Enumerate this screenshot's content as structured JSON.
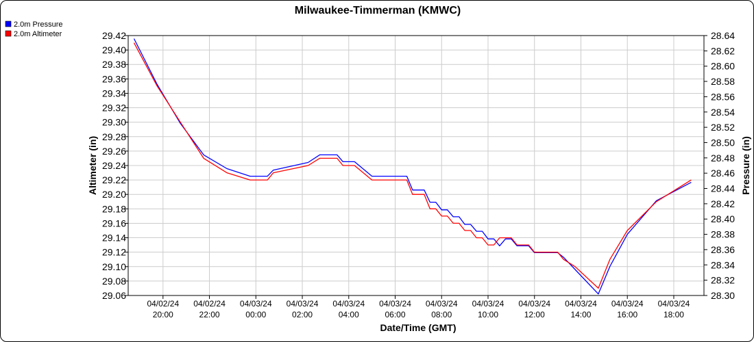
{
  "chart_data": {
    "type": "line",
    "title": "Milwaukee-Timmerman (KMWC)",
    "xlabel": "Date/Time (GMT)",
    "ylabel_left": "Altimeter (in)",
    "ylabel_right": "Pressure (in)",
    "ylim_left": [
      29.06,
      29.42
    ],
    "ylim_right": [
      28.3,
      28.64
    ],
    "left_ticks": [
      "29.42",
      "29.40",
      "29.38",
      "29.36",
      "29.34",
      "29.32",
      "29.30",
      "29.28",
      "29.26",
      "29.24",
      "29.22",
      "29.20",
      "29.18",
      "29.16",
      "29.14",
      "29.12",
      "29.10",
      "29.08",
      "29.06"
    ],
    "right_ticks": [
      "28.64",
      "28.62",
      "28.60",
      "28.58",
      "28.56",
      "28.54",
      "28.52",
      "28.50",
      "28.48",
      "28.46",
      "28.44",
      "28.42",
      "28.40",
      "28.38",
      "28.36",
      "28.34",
      "28.32",
      "28.30"
    ],
    "x_ticks": [
      {
        "date": "04/02/24",
        "time": "20:00",
        "hour": 20
      },
      {
        "date": "04/02/24",
        "time": "22:00",
        "hour": 22
      },
      {
        "date": "04/03/24",
        "time": "00:00",
        "hour": 24
      },
      {
        "date": "04/03/24",
        "time": "02:00",
        "hour": 26
      },
      {
        "date": "04/03/24",
        "time": "04:00",
        "hour": 28
      },
      {
        "date": "04/03/24",
        "time": "06:00",
        "hour": 30
      },
      {
        "date": "04/03/24",
        "time": "08:00",
        "hour": 32
      },
      {
        "date": "04/03/24",
        "time": "10:00",
        "hour": 34
      },
      {
        "date": "04/03/24",
        "time": "12:00",
        "hour": 36
      },
      {
        "date": "04/03/24",
        "time": "14:00",
        "hour": 38
      },
      {
        "date": "04/03/24",
        "time": "16:00",
        "hour": 40
      },
      {
        "date": "04/03/24",
        "time": "18:00",
        "hour": 42
      }
    ],
    "xlim_hours": [
      18.5,
      43.3
    ],
    "grid": true,
    "legend_position": "top-left",
    "series": [
      {
        "name": "2.0m Pressure",
        "axis": "right",
        "color": "#0000ff",
        "x": [
          18.75,
          19.75,
          20.75,
          21.75,
          22.75,
          23.75,
          24.5,
          24.75,
          26.25,
          26.75,
          27.25,
          27.5,
          27.75,
          28.25,
          29.0,
          29.25,
          29.5,
          30.0,
          30.5,
          30.75,
          31.0,
          31.25,
          31.5,
          31.75,
          32.0,
          32.25,
          32.5,
          32.75,
          33.0,
          33.25,
          33.5,
          33.75,
          34.0,
          34.25,
          34.5,
          34.75,
          35.0,
          35.25,
          35.5,
          35.75,
          36.0,
          36.25,
          36.5,
          36.75,
          37.0,
          37.25,
          37.75,
          38.75,
          39.25,
          40.0,
          41.25,
          42.75
        ],
        "y": [
          28.636,
          28.576,
          28.525,
          28.484,
          28.466,
          28.456,
          28.456,
          28.464,
          28.474,
          28.484,
          28.484,
          28.484,
          28.475,
          28.475,
          28.456,
          28.456,
          28.456,
          28.456,
          28.456,
          28.438,
          28.438,
          28.438,
          28.422,
          28.422,
          28.412,
          28.412,
          28.403,
          28.403,
          28.393,
          28.393,
          28.384,
          28.384,
          28.374,
          28.374,
          28.365,
          28.374,
          28.374,
          28.365,
          28.365,
          28.365,
          28.356,
          28.356,
          28.356,
          28.356,
          28.356,
          28.35,
          28.334,
          28.302,
          28.338,
          28.38,
          28.424,
          28.448
        ]
      },
      {
        "name": "2.0m Altimeter",
        "axis": "left",
        "color": "#ff0000",
        "x": [
          18.75,
          19.75,
          20.75,
          21.75,
          22.75,
          23.75,
          24.5,
          24.75,
          26.25,
          26.75,
          27.25,
          27.5,
          27.75,
          28.25,
          29.0,
          29.25,
          29.5,
          30.0,
          30.5,
          30.75,
          31.0,
          31.25,
          31.5,
          31.75,
          32.0,
          32.25,
          32.5,
          32.75,
          33.0,
          33.25,
          33.5,
          33.75,
          34.0,
          34.25,
          34.5,
          34.75,
          35.0,
          35.25,
          35.5,
          35.75,
          36.0,
          36.25,
          36.5,
          36.75,
          37.0,
          37.25,
          37.75,
          38.75,
          39.25,
          40.0,
          41.25,
          42.75
        ],
        "y": [
          29.41,
          29.35,
          29.3,
          29.25,
          29.23,
          29.22,
          29.22,
          29.23,
          29.24,
          29.25,
          29.25,
          29.25,
          29.24,
          29.24,
          29.22,
          29.22,
          29.22,
          29.22,
          29.22,
          29.2,
          29.2,
          29.2,
          29.18,
          29.18,
          29.17,
          29.17,
          29.16,
          29.16,
          29.15,
          29.15,
          29.14,
          29.14,
          29.13,
          29.13,
          29.14,
          29.14,
          29.14,
          29.13,
          29.13,
          29.13,
          29.12,
          29.12,
          29.12,
          29.12,
          29.12,
          29.11,
          29.1,
          29.07,
          29.11,
          29.15,
          29.19,
          29.22
        ]
      }
    ]
  }
}
